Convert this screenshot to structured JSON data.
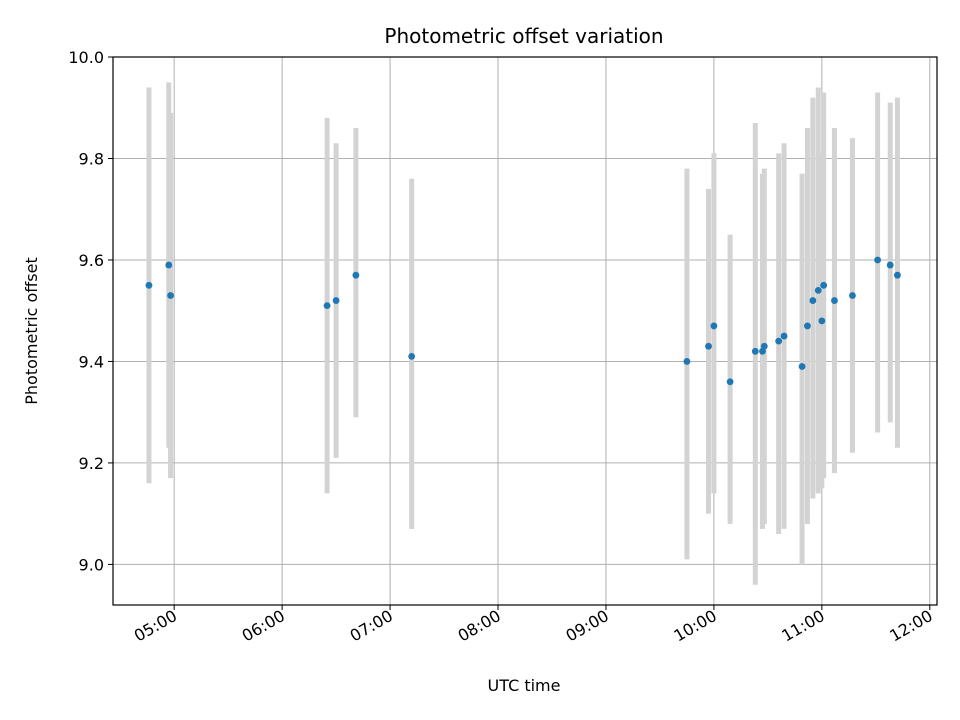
{
  "chart_data": {
    "type": "scatter",
    "title": "Photometric offset variation",
    "xlabel": "UTC time",
    "ylabel": "Photometric offset",
    "x_ticks": [
      "05:00",
      "06:00",
      "07:00",
      "08:00",
      "09:00",
      "10:00",
      "11:00",
      "12:00"
    ],
    "y_ticks": [
      "9.0",
      "9.2",
      "9.4",
      "9.6",
      "9.8",
      "10.0"
    ],
    "xlim": [
      "04:26",
      "12:04"
    ],
    "ylim": [
      8.92,
      10.0
    ],
    "grid": true,
    "errorbar_color": "#d3d3d3",
    "point_color": "#1f77b4",
    "points": [
      {
        "x": "04:46",
        "y": 9.55,
        "err_low": 9.16,
        "err_high": 9.94
      },
      {
        "x": "04:57",
        "y": 9.59,
        "err_low": 9.23,
        "err_high": 9.95
      },
      {
        "x": "04:58",
        "y": 9.53,
        "err_low": 9.17,
        "err_high": 9.89
      },
      {
        "x": "06:25",
        "y": 9.51,
        "err_low": 9.14,
        "err_high": 9.88
      },
      {
        "x": "06:30",
        "y": 9.52,
        "err_low": 9.21,
        "err_high": 9.83
      },
      {
        "x": "06:41",
        "y": 9.57,
        "err_low": 9.29,
        "err_high": 9.86
      },
      {
        "x": "07:12",
        "y": 9.41,
        "err_low": 9.07,
        "err_high": 9.76
      },
      {
        "x": "09:45",
        "y": 9.4,
        "err_low": 9.01,
        "err_high": 9.78
      },
      {
        "x": "09:57",
        "y": 9.43,
        "err_low": 9.1,
        "err_high": 9.74
      },
      {
        "x": "10:00",
        "y": 9.47,
        "err_low": 9.14,
        "err_high": 9.81
      },
      {
        "x": "10:09",
        "y": 9.36,
        "err_low": 9.08,
        "err_high": 9.65
      },
      {
        "x": "10:23",
        "y": 9.42,
        "err_low": 8.96,
        "err_high": 9.87
      },
      {
        "x": "10:27",
        "y": 9.42,
        "err_low": 9.07,
        "err_high": 9.77
      },
      {
        "x": "10:28",
        "y": 9.43,
        "err_low": 9.08,
        "err_high": 9.78
      },
      {
        "x": "10:36",
        "y": 9.44,
        "err_low": 9.06,
        "err_high": 9.81
      },
      {
        "x": "10:39",
        "y": 9.45,
        "err_low": 9.07,
        "err_high": 9.83
      },
      {
        "x": "10:49",
        "y": 9.39,
        "err_low": 9.0,
        "err_high": 9.77
      },
      {
        "x": "10:52",
        "y": 9.47,
        "err_low": 9.08,
        "err_high": 9.86
      },
      {
        "x": "10:55",
        "y": 9.52,
        "err_low": 9.13,
        "err_high": 9.92
      },
      {
        "x": "10:58",
        "y": 9.54,
        "err_low": 9.14,
        "err_high": 9.94
      },
      {
        "x": "11:00",
        "y": 9.48,
        "err_low": 9.15,
        "err_high": 9.81
      },
      {
        "x": "11:01",
        "y": 9.55,
        "err_low": 9.17,
        "err_high": 9.93
      },
      {
        "x": "11:07",
        "y": 9.52,
        "err_low": 9.18,
        "err_high": 9.86
      },
      {
        "x": "11:17",
        "y": 9.53,
        "err_low": 9.22,
        "err_high": 9.84
      },
      {
        "x": "11:31",
        "y": 9.6,
        "err_low": 9.26,
        "err_high": 9.93
      },
      {
        "x": "11:38",
        "y": 9.59,
        "err_low": 9.28,
        "err_high": 9.91
      },
      {
        "x": "11:42",
        "y": 9.57,
        "err_low": 9.23,
        "err_high": 9.92
      }
    ]
  }
}
